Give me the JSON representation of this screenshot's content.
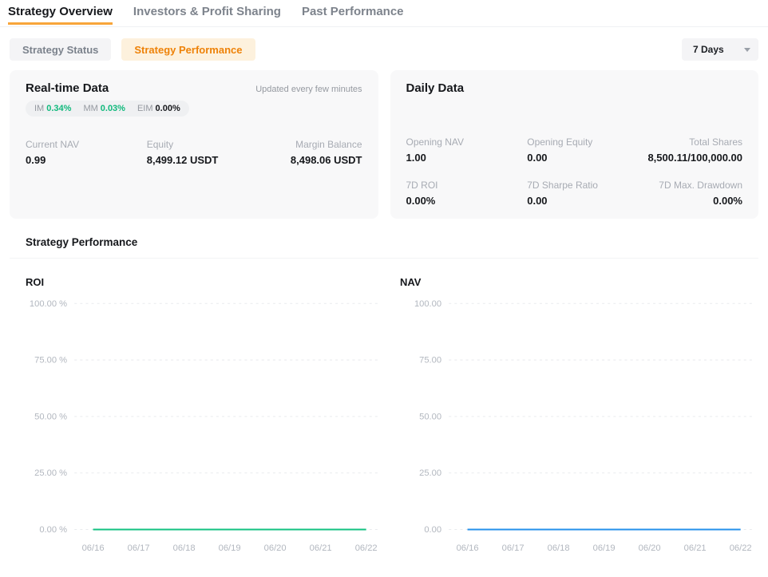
{
  "tabs": [
    {
      "label": "Strategy Overview",
      "active": true
    },
    {
      "label": "Investors & Profit Sharing",
      "active": false
    },
    {
      "label": "Past Performance",
      "active": false
    }
  ],
  "subtabs": [
    {
      "label": "Strategy Status",
      "active": false
    },
    {
      "label": "Strategy Performance",
      "active": true
    }
  ],
  "period_selector": {
    "value": "7 Days"
  },
  "colors": {
    "accent_orange": "#ee8208",
    "tab_underline": "#f8a53a",
    "positive_green": "#10b97c",
    "roi_line_green": "#12c281",
    "nav_line_blue": "#2490eb",
    "card_bg": "#f8f8f9"
  },
  "realtime_card": {
    "title": "Real-time Data",
    "updated_note": "Updated every few minutes",
    "margin_badges": [
      {
        "label": "IM",
        "value": "0.34%"
      },
      {
        "label": "MM",
        "value": "0.03%"
      },
      {
        "label": "EIM",
        "value": "0.00%"
      }
    ],
    "stats": [
      {
        "label": "Current NAV",
        "value": "0.99"
      },
      {
        "label": "Equity",
        "value": "8,499.12 USDT"
      },
      {
        "label": "Margin Balance",
        "value": "8,498.06 USDT"
      }
    ]
  },
  "daily_card": {
    "title": "Daily Data",
    "stats_row1": [
      {
        "label": "Opening NAV",
        "value": "1.00"
      },
      {
        "label": "Opening Equity",
        "value": "0.00"
      },
      {
        "label": "Total Shares",
        "value": "8,500.11/100,000.00"
      }
    ],
    "stats_row2": [
      {
        "label": "7D ROI",
        "value": "0.00%"
      },
      {
        "label": "7D Sharpe Ratio",
        "value": "0.00"
      },
      {
        "label": "7D Max. Drawdown",
        "value": "0.00%"
      }
    ]
  },
  "performance_section": {
    "title": "Strategy Performance"
  },
  "chart_data": [
    {
      "type": "line",
      "title": "ROI",
      "x": [
        "06/16",
        "06/17",
        "06/18",
        "06/19",
        "06/20",
        "06/21",
        "06/22"
      ],
      "series": [
        {
          "name": "ROI",
          "values": [
            0,
            0,
            0,
            0,
            0,
            0,
            0
          ],
          "color": "#12c281"
        }
      ],
      "ylabel": "",
      "xlabel": "",
      "ylim": [
        0,
        100
      ],
      "yticks": [
        100,
        75,
        50,
        25,
        0
      ],
      "ytick_labels": [
        "100.00 %",
        "75.00 %",
        "50.00 %",
        "25.00 %",
        "0.00 %"
      ],
      "grid": "horizontal-dashed",
      "legend": "none"
    },
    {
      "type": "line",
      "title": "NAV",
      "x": [
        "06/16",
        "06/17",
        "06/18",
        "06/19",
        "06/20",
        "06/21",
        "06/22"
      ],
      "series": [
        {
          "name": "NAV",
          "values": [
            0,
            0,
            0,
            0,
            0,
            0,
            0
          ],
          "color": "#2490eb"
        }
      ],
      "ylabel": "",
      "xlabel": "",
      "ylim": [
        0,
        100
      ],
      "yticks": [
        100,
        75,
        50,
        25,
        0
      ],
      "ytick_labels": [
        "100.00",
        "75.00",
        "50.00",
        "25.00",
        "0.00"
      ],
      "grid": "horizontal-dashed",
      "legend": "none"
    }
  ]
}
